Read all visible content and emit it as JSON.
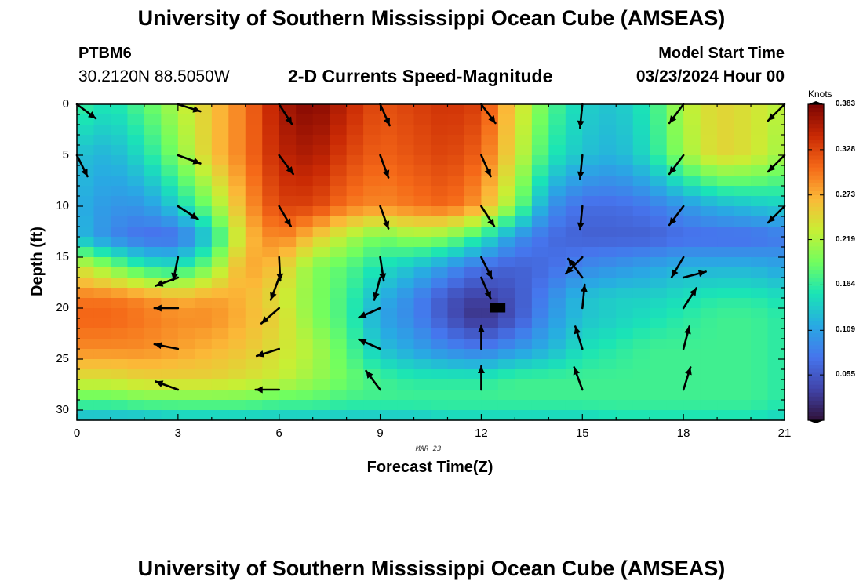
{
  "header": {
    "title": "University of Southern Mississippi Ocean Cube (AMSEAS)",
    "station_id": "PTBM6",
    "station_coords": "30.2120N  88.5050W",
    "chart_title": "2-D Currents Speed-Magnitude",
    "model_start_label": "Model Start Time",
    "model_start_value": "03/23/2024 Hour 00"
  },
  "footer": {
    "title": "University of Southern Mississippi Ocean Cube (AMSEAS)"
  },
  "chart_data": {
    "type": "heatmap",
    "title": "2-D Currents Speed-Magnitude",
    "xlabel": "Forecast Time(Z)",
    "ylabel": "Depth (ft)",
    "date_label": "MAR 23",
    "x_ticks": [
      "0",
      "3",
      "6",
      "9",
      "12",
      "15",
      "18",
      "21"
    ],
    "y_ticks": [
      "0",
      "5",
      "10",
      "15",
      "20",
      "25",
      "30"
    ],
    "xlim": [
      0,
      21
    ],
    "ylim": [
      0,
      31
    ],
    "colorbar": {
      "unit": "Knots",
      "min": 0,
      "max": 0.383,
      "tick_labels": [
        "0.383",
        "0.328",
        "0.273",
        "0.219",
        "0.164",
        "0.109",
        "0.055"
      ],
      "tick_values": [
        0.383,
        0.328,
        0.273,
        0.219,
        0.164,
        0.109,
        0.055
      ]
    },
    "arrow_hours": [
      0,
      3,
      6,
      9,
      12,
      15,
      18,
      21
    ],
    "arrow_depths": [
      0,
      5,
      10,
      15,
      20,
      25
    ],
    "speed_anchors": {
      "hours": [
        0,
        1,
        2,
        3,
        4,
        5,
        6,
        7,
        8,
        9,
        10,
        11,
        12,
        13,
        14,
        15,
        16,
        17,
        18,
        19,
        20,
        21
      ],
      "depths": [
        0,
        5,
        10,
        13,
        16,
        19,
        21,
        24,
        27,
        29,
        31
      ],
      "values": [
        [
          0.17,
          0.15,
          0.18,
          0.22,
          0.26,
          0.3,
          0.36,
          0.38,
          0.35,
          0.32,
          0.33,
          0.34,
          0.33,
          0.25,
          0.18,
          0.14,
          0.13,
          0.16,
          0.22,
          0.25,
          0.24,
          0.22
        ],
        [
          0.13,
          0.12,
          0.15,
          0.2,
          0.26,
          0.3,
          0.35,
          0.36,
          0.33,
          0.31,
          0.32,
          0.33,
          0.31,
          0.24,
          0.16,
          0.13,
          0.12,
          0.15,
          0.21,
          0.25,
          0.24,
          0.21
        ],
        [
          0.12,
          0.1,
          0.1,
          0.14,
          0.2,
          0.28,
          0.33,
          0.33,
          0.3,
          0.29,
          0.3,
          0.31,
          0.28,
          0.2,
          0.1,
          0.07,
          0.07,
          0.08,
          0.1,
          0.12,
          0.13,
          0.14
        ],
        [
          0.13,
          0.09,
          0.07,
          0.07,
          0.14,
          0.26,
          0.3,
          0.26,
          0.22,
          0.19,
          0.21,
          0.2,
          0.16,
          0.1,
          0.07,
          0.06,
          0.06,
          0.06,
          0.07,
          0.07,
          0.07,
          0.08
        ],
        [
          0.24,
          0.2,
          0.16,
          0.15,
          0.2,
          0.28,
          0.26,
          0.2,
          0.18,
          0.15,
          0.13,
          0.1,
          0.07,
          0.06,
          0.07,
          0.09,
          0.1,
          0.11,
          0.12,
          0.12,
          0.12,
          0.11
        ],
        [
          0.3,
          0.3,
          0.29,
          0.27,
          0.28,
          0.27,
          0.24,
          0.2,
          0.17,
          0.12,
          0.09,
          0.05,
          0.03,
          0.05,
          0.09,
          0.13,
          0.14,
          0.14,
          0.15,
          0.16,
          0.16,
          0.15
        ],
        [
          0.31,
          0.31,
          0.3,
          0.29,
          0.29,
          0.27,
          0.25,
          0.2,
          0.17,
          0.11,
          0.09,
          0.05,
          0.02,
          0.05,
          0.1,
          0.13,
          0.14,
          0.15,
          0.16,
          0.17,
          0.17,
          0.16
        ],
        [
          0.29,
          0.29,
          0.29,
          0.28,
          0.27,
          0.26,
          0.24,
          0.22,
          0.18,
          0.13,
          0.11,
          0.09,
          0.08,
          0.1,
          0.12,
          0.15,
          0.16,
          0.17,
          0.17,
          0.17,
          0.17,
          0.16
        ],
        [
          0.24,
          0.24,
          0.25,
          0.25,
          0.25,
          0.24,
          0.23,
          0.21,
          0.19,
          0.17,
          0.16,
          0.16,
          0.16,
          0.17,
          0.17,
          0.17,
          0.17,
          0.17,
          0.17,
          0.17,
          0.17,
          0.16
        ],
        [
          0.18,
          0.18,
          0.19,
          0.19,
          0.19,
          0.19,
          0.18,
          0.18,
          0.17,
          0.17,
          0.17,
          0.17,
          0.17,
          0.17,
          0.17,
          0.17,
          0.17,
          0.17,
          0.17,
          0.17,
          0.17,
          0.16
        ],
        [
          0.12,
          0.12,
          0.12,
          0.13,
          0.13,
          0.13,
          0.13,
          0.13,
          0.13,
          0.13,
          0.13,
          0.14,
          0.14,
          0.14,
          0.14,
          0.14,
          0.15,
          0.15,
          0.15,
          0.15,
          0.15,
          0.14
        ]
      ]
    },
    "current_vectors": [
      {
        "hour": 0,
        "depth": 0,
        "dx": 0.8,
        "dy": 0.6
      },
      {
        "hour": 3,
        "depth": 0,
        "dx": 0.95,
        "dy": 0.3
      },
      {
        "hour": 6,
        "depth": 0,
        "dx": 0.55,
        "dy": 0.85
      },
      {
        "hour": 9,
        "depth": 0,
        "dx": 0.4,
        "dy": 0.9
      },
      {
        "hour": 12,
        "depth": 0,
        "dx": 0.6,
        "dy": 0.8
      },
      {
        "hour": 15,
        "depth": 0,
        "dx": -0.1,
        "dy": 1
      },
      {
        "hour": 18,
        "depth": 0,
        "dx": -0.6,
        "dy": 0.8
      },
      {
        "hour": 21,
        "depth": 0,
        "dx": -0.7,
        "dy": 0.7
      },
      {
        "hour": 0,
        "depth": 5,
        "dx": 0.45,
        "dy": 0.9
      },
      {
        "hour": 3,
        "depth": 5,
        "dx": 0.95,
        "dy": 0.35
      },
      {
        "hour": 6,
        "depth": 5,
        "dx": 0.6,
        "dy": 0.8
      },
      {
        "hour": 9,
        "depth": 5,
        "dx": 0.35,
        "dy": 0.95
      },
      {
        "hour": 12,
        "depth": 5,
        "dx": 0.4,
        "dy": 0.9
      },
      {
        "hour": 15,
        "depth": 5,
        "dx": -0.1,
        "dy": 1
      },
      {
        "hour": 18,
        "depth": 5,
        "dx": -0.6,
        "dy": 0.8
      },
      {
        "hour": 21,
        "depth": 5,
        "dx": -0.7,
        "dy": 0.7
      },
      {
        "hour": 3,
        "depth": 10,
        "dx": 0.85,
        "dy": 0.55
      },
      {
        "hour": 6,
        "depth": 10,
        "dx": 0.5,
        "dy": 0.85
      },
      {
        "hour": 9,
        "depth": 10,
        "dx": 0.35,
        "dy": 0.95
      },
      {
        "hour": 12,
        "depth": 10,
        "dx": 0.55,
        "dy": 0.85
      },
      {
        "hour": 15,
        "depth": 10,
        "dx": -0.1,
        "dy": 1
      },
      {
        "hour": 18,
        "depth": 10,
        "dx": -0.6,
        "dy": 0.8
      },
      {
        "hour": 21,
        "depth": 10,
        "dx": -0.7,
        "dy": 0.7
      },
      {
        "hour": 3,
        "depth": 15,
        "dx": -0.2,
        "dy": 0.98
      },
      {
        "hour": 6,
        "depth": 15,
        "dx": 0.05,
        "dy": 1
      },
      {
        "hour": 9,
        "depth": 15,
        "dx": 0.15,
        "dy": 1
      },
      {
        "hour": 12,
        "depth": 15,
        "dx": 0.45,
        "dy": 0.9
      },
      {
        "hour": 15,
        "depth": 15,
        "dx": -0.7,
        "dy": 0.7
      },
      {
        "hour": 18,
        "depth": 15,
        "dx": -0.5,
        "dy": 0.85
      },
      {
        "hour": 3,
        "depth": 17,
        "dx": -0.95,
        "dy": 0.35
      },
      {
        "hour": 6,
        "depth": 17,
        "dx": -0.35,
        "dy": 0.95
      },
      {
        "hour": 9,
        "depth": 17,
        "dx": -0.25,
        "dy": 0.95
      },
      {
        "hour": 12,
        "depth": 17,
        "dx": 0.4,
        "dy": 0.9
      },
      {
        "hour": 15,
        "depth": 17,
        "dx": -0.6,
        "dy": -0.8
      },
      {
        "hour": 18,
        "depth": 17,
        "dx": 0.95,
        "dy": -0.25
      },
      {
        "hour": 3,
        "depth": 20,
        "dx": -1,
        "dy": 0
      },
      {
        "hour": 6,
        "depth": 20,
        "dx": -0.75,
        "dy": 0.65
      },
      {
        "hour": 9,
        "depth": 20,
        "dx": -0.9,
        "dy": 0.4
      },
      {
        "hour": 15,
        "depth": 20,
        "dx": 0.1,
        "dy": -1
      },
      {
        "hour": 18,
        "depth": 20,
        "dx": 0.55,
        "dy": -0.85
      },
      {
        "hour": 3,
        "depth": 24,
        "dx": -1,
        "dy": -0.2
      },
      {
        "hour": 6,
        "depth": 24,
        "dx": -0.95,
        "dy": 0.3
      },
      {
        "hour": 9,
        "depth": 24,
        "dx": -0.9,
        "dy": -0.4
      },
      {
        "hour": 12,
        "depth": 24,
        "dx": 0,
        "dy": -1
      },
      {
        "hour": 15,
        "depth": 24,
        "dx": -0.3,
        "dy": -0.95
      },
      {
        "hour": 18,
        "depth": 24,
        "dx": 0.25,
        "dy": -0.95
      },
      {
        "hour": 3,
        "depth": 28,
        "dx": -0.95,
        "dy": -0.35
      },
      {
        "hour": 6,
        "depth": 28,
        "dx": -1,
        "dy": 0
      },
      {
        "hour": 9,
        "depth": 28,
        "dx": -0.6,
        "dy": -0.8
      },
      {
        "hour": 12,
        "depth": 28,
        "dx": 0,
        "dy": -1
      },
      {
        "hour": 15,
        "depth": 28,
        "dx": -0.35,
        "dy": -0.95
      },
      {
        "hour": 18,
        "depth": 28,
        "dx": 0.3,
        "dy": -0.95
      }
    ]
  }
}
